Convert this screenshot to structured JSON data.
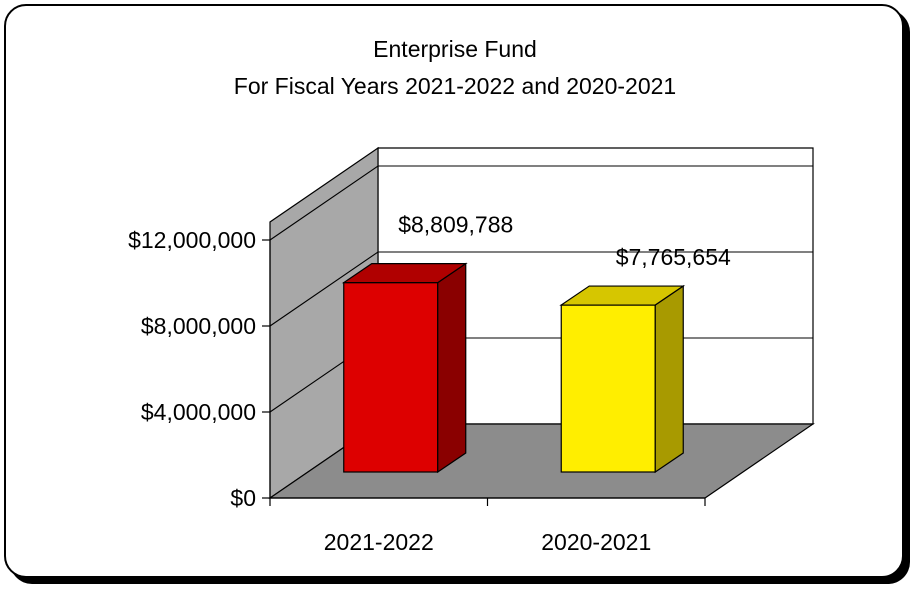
{
  "chart_data": {
    "type": "bar",
    "title": [
      "Enterprise Fund",
      "For Fiscal Years 2021-2022  and 2020-2021"
    ],
    "categories": [
      "2021-2022",
      "2020-2021"
    ],
    "values": [
      8809788,
      7765654
    ],
    "data_labels": [
      "$8,809,788",
      "$7,765,654"
    ],
    "y_ticks": [
      0,
      4000000,
      8000000,
      12000000
    ],
    "y_tick_labels": [
      "$0",
      "$4,000,000",
      "$8,000,000",
      "$12,000,000"
    ],
    "ylim": [
      0,
      12000000
    ],
    "xlabel": "",
    "ylabel": "",
    "grid": true,
    "style": "3d-column",
    "colors": {
      "bars": [
        "#dd0000",
        "#ffee00"
      ],
      "bar_sides": [
        "#8a0000",
        "#a89a00"
      ],
      "bar_tops": [
        "#b00000",
        "#d6c600"
      ],
      "side_wall": "#a8a8a8",
      "floor": "#8c8c8c",
      "back_wall": "#ffffff"
    }
  }
}
